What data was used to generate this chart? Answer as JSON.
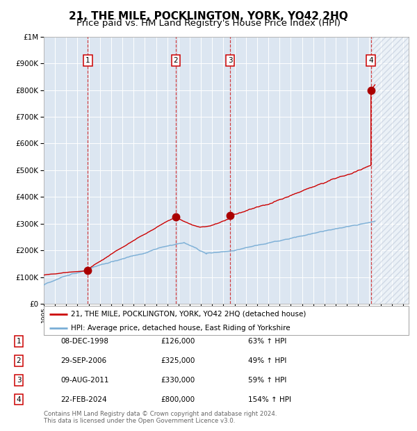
{
  "title": "21, THE MILE, POCKLINGTON, YORK, YO42 2HQ",
  "subtitle": "Price paid vs. HM Land Registry's House Price Index (HPI)",
  "title_fontsize": 11,
  "subtitle_fontsize": 9.5,
  "ylim": [
    0,
    1000000
  ],
  "xlim_start": 1995.0,
  "xlim_end": 2027.5,
  "background_color": "#ffffff",
  "plot_bg_color": "#dce6f1",
  "grid_color": "#ffffff",
  "transactions": [
    {
      "num": 1,
      "date": "08-DEC-1998",
      "x": 1998.92,
      "price": 126000,
      "pct": "63%",
      "dir": "↑"
    },
    {
      "num": 2,
      "date": "29-SEP-2006",
      "x": 2006.75,
      "price": 325000,
      "pct": "49%",
      "dir": "↑"
    },
    {
      "num": 3,
      "date": "09-AUG-2011",
      "x": 2011.6,
      "price": 330000,
      "pct": "59%",
      "dir": "↑"
    },
    {
      "num": 4,
      "date": "22-FEB-2024",
      "x": 2024.14,
      "price": 800000,
      "pct": "154%",
      "dir": "↑"
    }
  ],
  "legend_line1": "21, THE MILE, POCKLINGTON, YORK, YO42 2HQ (detached house)",
  "legend_line2": "HPI: Average price, detached house, East Riding of Yorkshire",
  "footer1": "Contains HM Land Registry data © Crown copyright and database right 2024.",
  "footer2": "This data is licensed under the Open Government Licence v3.0.",
  "red_line_color": "#cc0000",
  "blue_line_color": "#7aaed6",
  "marker_color": "#aa0000",
  "hatch_region_start": 2024.14,
  "hatch_region_end": 2027.5,
  "yticks": [
    0,
    100000,
    200000,
    300000,
    400000,
    500000,
    600000,
    700000,
    800000,
    900000,
    1000000
  ],
  "ytick_labels": [
    "£0",
    "£100K",
    "£200K",
    "£300K",
    "£400K",
    "£500K",
    "£600K",
    "£700K",
    "£800K",
    "£900K",
    "£1M"
  ]
}
